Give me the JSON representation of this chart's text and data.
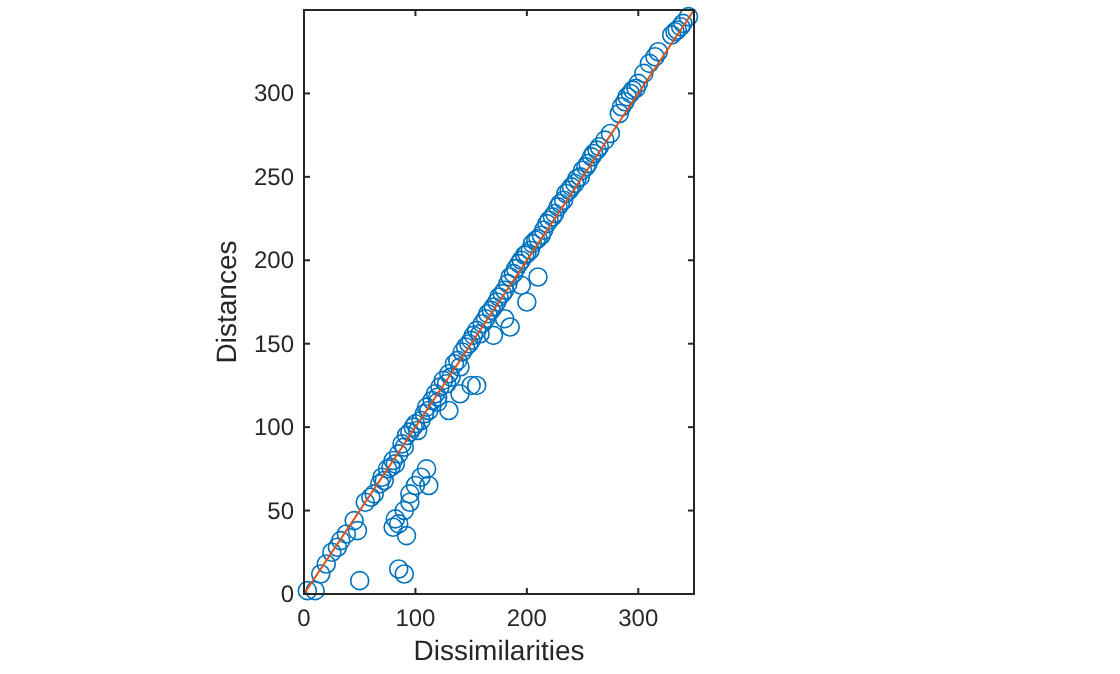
{
  "chart_data": {
    "type": "scatter",
    "xlabel": "Dissimilarities",
    "ylabel": "Distances",
    "xlim": [
      0,
      350
    ],
    "ylim": [
      0,
      350
    ],
    "xticks": [
      0,
      100,
      200,
      300
    ],
    "yticks": [
      0,
      50,
      100,
      150,
      200,
      250,
      300
    ],
    "grid": false,
    "series": [
      {
        "color": "#0072bd",
        "marker": "circle",
        "x": [
          3,
          10,
          15,
          20,
          25,
          30,
          33,
          38,
          45,
          48,
          55,
          60,
          63,
          68,
          70,
          72,
          75,
          78,
          80,
          82,
          85,
          88,
          90,
          92,
          95,
          98,
          100,
          102,
          105,
          108,
          110,
          112,
          115,
          118,
          120,
          122,
          125,
          128,
          130,
          132,
          135,
          138,
          140,
          142,
          145,
          148,
          150,
          152,
          155,
          158,
          160,
          163,
          165,
          168,
          170,
          173,
          175,
          178,
          180,
          183,
          185,
          188,
          190,
          193,
          195,
          198,
          200,
          203,
          205,
          208,
          210,
          213,
          215,
          218,
          220,
          223,
          225,
          228,
          230,
          233,
          235,
          238,
          240,
          243,
          245,
          248,
          250,
          253,
          255,
          258,
          260,
          263,
          265,
          270,
          275,
          283,
          285,
          288,
          290,
          293,
          295,
          298,
          300,
          305,
          310,
          315,
          318,
          330,
          333,
          335,
          338,
          340,
          345,
          50,
          85,
          90,
          80,
          82,
          90,
          95,
          100,
          105,
          110,
          112,
          85,
          92,
          95,
          120,
          130,
          140,
          150,
          155,
          170,
          180,
          200,
          185,
          195,
          210
        ],
        "values": [
          2,
          2,
          12,
          18,
          25,
          28,
          32,
          36,
          44,
          38,
          55,
          58,
          60,
          66,
          70,
          68,
          75,
          76,
          80,
          78,
          84,
          90,
          88,
          95,
          97,
          100,
          102,
          98,
          104,
          108,
          112,
          110,
          116,
          120,
          118,
          124,
          128,
          126,
          132,
          130,
          138,
          140,
          136,
          145,
          148,
          150,
          152,
          155,
          158,
          156,
          162,
          165,
          168,
          170,
          172,
          175,
          178,
          180,
          182,
          186,
          190,
          192,
          195,
          198,
          200,
          203,
          204,
          206,
          210,
          212,
          213,
          215,
          218,
          222,
          224,
          226,
          228,
          232,
          234,
          236,
          240,
          242,
          244,
          246,
          249,
          250,
          254,
          256,
          258,
          262,
          264,
          266,
          268,
          272,
          276,
          288,
          292,
          295,
          298,
          300,
          302,
          303,
          306,
          312,
          318,
          322,
          325,
          335,
          337,
          338,
          340,
          342,
          346,
          8,
          15,
          12,
          40,
          45,
          50,
          60,
          65,
          70,
          75,
          65,
          42,
          35,
          55,
          115,
          110,
          120,
          125,
          125,
          155,
          165,
          175,
          160,
          185,
          190
        ]
      },
      {
        "type": "line",
        "color": "#d95319",
        "x": [
          0,
          350
        ],
        "values": [
          0,
          350
        ]
      }
    ]
  }
}
